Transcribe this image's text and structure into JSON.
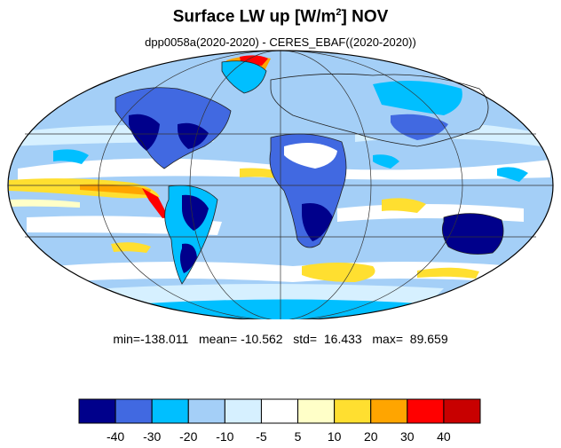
{
  "title": {
    "main": "Surface LW up [W/m",
    "superscript": "2",
    "suffix": "]  NOV"
  },
  "subtitle": "dpp0058a(2020-2020) - CERES_EBAF((2020-2020))",
  "stats": {
    "min_label": "min=",
    "min": "-138.011",
    "mean_label": "mean=",
    "mean": "-10.562",
    "std_label": "std=",
    "std": "16.433",
    "max_label": "max=",
    "max": "89.659"
  },
  "colorbar": {
    "colors": [
      "#00008b",
      "#4169e1",
      "#00bfff",
      "#a4cff7",
      "#d6f0ff",
      "#ffffff",
      "#ffffc8",
      "#ffdf30",
      "#ffa500",
      "#ff0000",
      "#c80000"
    ],
    "tick_labels": [
      "-40",
      "-30",
      "-20",
      "-10",
      "-5",
      "5",
      "10",
      "20",
      "30",
      "40"
    ]
  },
  "map": {
    "projection": "mollweide",
    "ocean_base_color": "#a4cff7",
    "land_base_color": "#a4cff7"
  }
}
